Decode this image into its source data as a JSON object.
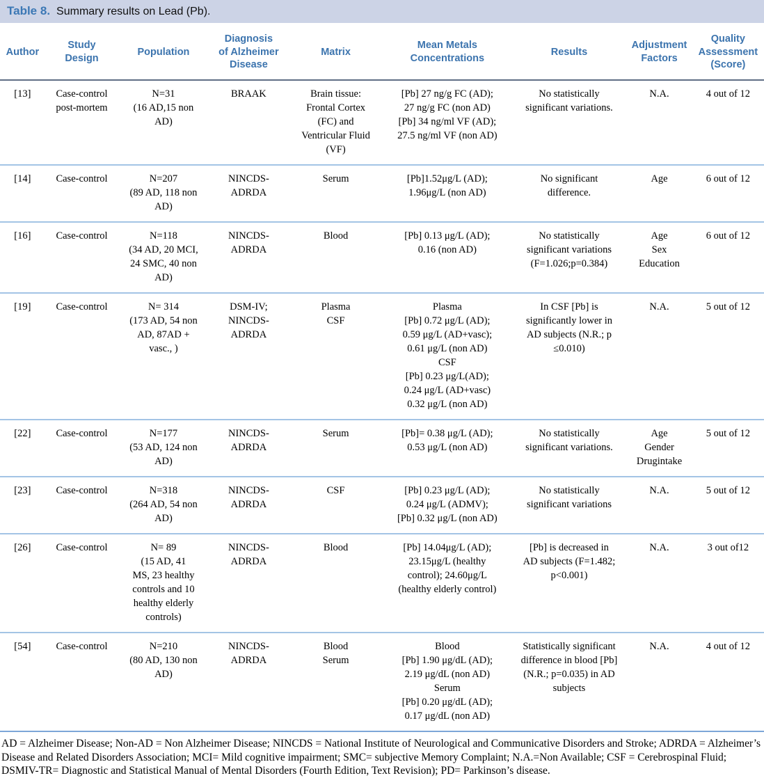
{
  "title": {
    "label": "Table 8.",
    "text": "Summary results on Lead (Pb)."
  },
  "colors": {
    "caption_background": "#ccd3e6",
    "accent_blue": "#3c74ae",
    "header_rule": "#5f6e85",
    "row_rule": "#a3c4e5",
    "bottom_rule": "#7ca6d8"
  },
  "table": {
    "columns": [
      "Author",
      "Study\nDesign",
      "Population",
      "Diagnosis\nof Alzheimer\nDisease",
      "Matrix",
      "Mean Metals\nConcentrations",
      "Results",
      "Adjustment\nFactors",
      "Quality\nAssessment\n(Score)"
    ],
    "rows": [
      {
        "cells": [
          "[13]",
          "Case-control\npost-mortem",
          "N=31\n(16 AD,15 non\nAD)",
          "BRAAK",
          "Brain tissue:\nFrontal Cortex\n(FC) and\nVentricular Fluid\n(VF)",
          "[Pb] 27 ng/g FC (AD);\n27 ng/g FC (non AD)\n[Pb] 34 ng/ml VF (AD);\n27.5 ng/ml VF (non AD)",
          "No statistically\nsignificant variations.",
          "N.A.",
          "4 out of 12"
        ]
      },
      {
        "cells": [
          "[14]",
          "Case-control",
          "N=207\n(89 AD, 118 non\nAD)",
          "NINCDS-\nADRDA",
          "Serum",
          "[Pb]1.52μg/L (AD);\n1.96μg/L (non AD)",
          "No significant\ndifference.",
          "Age",
          "6 out of 12"
        ]
      },
      {
        "cells": [
          "[16]",
          "Case-control",
          "N=118\n(34 AD, 20 MCI,\n24 SMC, 40 non\nAD)",
          "NINCDS-\nADRDA",
          "Blood",
          "[Pb] 0.13 μg/L (AD);\n0.16 (non AD)",
          "No statistically\nsignificant variations\n(F=1.026;p=0.384)",
          "Age\nSex\nEducation",
          "6 out of 12"
        ]
      },
      {
        "cells": [
          "[19]",
          "Case-control",
          "N= 314\n(173 AD, 54 non\nAD, 87AD +\nvasc., )",
          "DSM-IV;\nNINCDS-\nADRDA",
          "Plasma\nCSF",
          "Plasma\n[Pb] 0.72 μg/L (AD);\n0.59 μg/L (AD+vasc);\n0.61 μg/L (non AD)\nCSF\n[Pb] 0.23 μg/L(AD);\n0.24 μg/L (AD+vasc)\n0.32 μg/L (non AD)",
          "In CSF [Pb] is\nsignificantly lower in\nAD subjects (N.R.; p\n≤0.010)",
          "N.A.",
          "5 out of 12"
        ]
      },
      {
        "cells": [
          "[22]",
          "Case-control",
          "N=177\n(53 AD, 124 non\nAD)",
          "NINCDS-\nADRDA",
          "Serum",
          "[Pb]= 0.38 μg/L (AD);\n0.53 μg/L (non AD)",
          "No statistically\nsignificant variations.",
          "Age\nGender\nDrugintake",
          "5 out of 12"
        ]
      },
      {
        "cells": [
          "[23]",
          "Case-control",
          "N=318\n(264 AD, 54 non\nAD)",
          "NINCDS-\nADRDA",
          "CSF",
          "[Pb] 0.23 μg/L (AD);\n0.24 μg/L (ADMV);\n[Pb] 0.32 μg/L (non AD)",
          "No statistically\nsignificant variations",
          "N.A.",
          "5 out of 12"
        ]
      },
      {
        "cells": [
          "[26]",
          "Case-control",
          "N= 89\n(15 AD, 41\nMS, 23 healthy\ncontrols and 10\nhealthy elderly\ncontrols)",
          "NINCDS-\nADRDA",
          "Blood",
          "[Pb] 14.04μg/L (AD);\n23.15μg/L (healthy\ncontrol); 24.60μg/L\n(healthy elderly control)",
          "[Pb] is decreased in\nAD subjects (F=1.482;\np<0.001)",
          "N.A.",
          "3 out of12"
        ]
      },
      {
        "cells": [
          "[54]",
          "Case-control",
          "N=210\n(80 AD, 130 non\nAD)",
          "NINCDS-\nADRDA",
          "Blood\nSerum",
          "Blood\n[Pb] 1.90 μg/dL (AD);\n2.19 μg/dL (non AD)\nSerum\n[Pb] 0.20 μg/dL (AD);\n0.17 μg/dL (non AD)",
          "Statistically significant\ndifference in blood [Pb]\n(N.R.; p=0.035) in AD\nsubjects",
          "N.A.",
          "4 out of 12"
        ]
      }
    ]
  },
  "footnote": "AD = Alzheimer Disease; Non-AD = Non Alzheimer Disease; NINCDS = National Institute of Neurological and Communicative Disorders and Stroke; ADRDA = Alzheimer’s Disease and Related Disorders Association; MCI= Mild cognitive impairment; SMC= subjective Memory Complaint; N.A.=Non Available; CSF = Cerebrospinal Fluid; DSMIV-TR= Diagnostic and Statistical Manual of Mental Disorders (Fourth Edition, Text Revision); PD= Parkinson’s disease."
}
